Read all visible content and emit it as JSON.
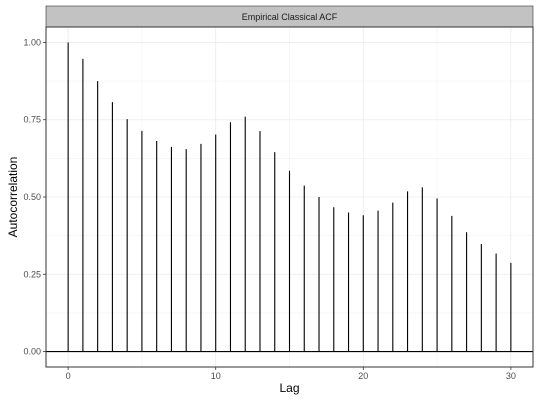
{
  "chart_data": {
    "type": "bar",
    "title": "Empirical Classical ACF",
    "xlabel": "Lag",
    "ylabel": "Autocorrelation",
    "x": [
      0,
      1,
      2,
      3,
      4,
      5,
      6,
      7,
      8,
      9,
      10,
      11,
      12,
      13,
      14,
      15,
      16,
      17,
      18,
      19,
      20,
      21,
      22,
      23,
      24,
      25,
      26,
      27,
      28,
      29,
      30
    ],
    "values": [
      1.0,
      0.947,
      0.875,
      0.807,
      0.752,
      0.714,
      0.681,
      0.662,
      0.655,
      0.672,
      0.702,
      0.742,
      0.76,
      0.713,
      0.645,
      0.585,
      0.537,
      0.5,
      0.467,
      0.45,
      0.441,
      0.456,
      0.482,
      0.518,
      0.531,
      0.495,
      0.439,
      0.386,
      0.348,
      0.317,
      0.287
    ],
    "xlim": [
      -1.5,
      31.5
    ],
    "ylim": [
      -0.05,
      1.05
    ],
    "xticks": [
      0,
      10,
      20,
      30
    ],
    "yticks": [
      0,
      0.25,
      0.5,
      0.75,
      1.0
    ],
    "xtick_labels": [
      "0",
      "10",
      "20",
      "30"
    ],
    "ytick_labels": [
      "0.00",
      "0.25",
      "0.50",
      "0.75",
      "1.00"
    ],
    "grid": true,
    "legend": "none",
    "colors": {
      "strip_background": "#c2c2c2",
      "bar": "#000000",
      "zero_line": "#000000",
      "grid": "#ebebeb",
      "panel_border": "#333333"
    }
  }
}
